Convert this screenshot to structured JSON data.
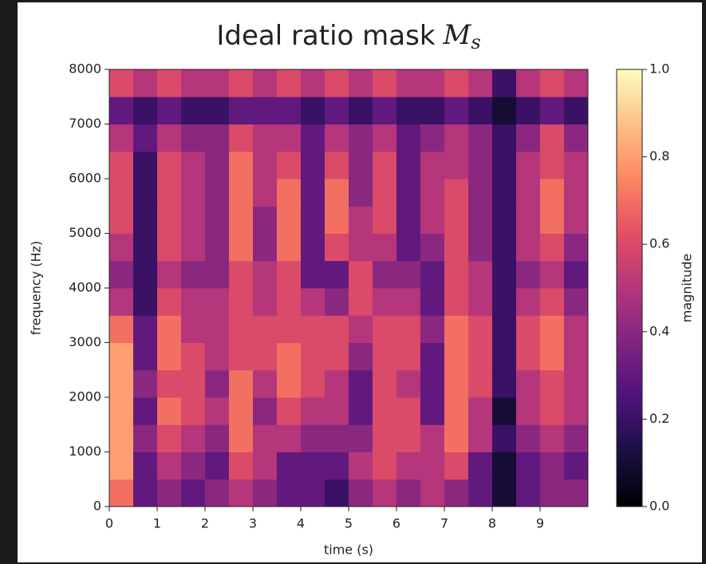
{
  "chart_data": {
    "type": "heatmap",
    "title": "Ideal ratio mask",
    "title_symbol": "M",
    "title_subscript": "s",
    "x_label": "time (s)",
    "y_label": "frequency (Hz)",
    "x_edges": [
      0,
      0.5,
      1,
      1.5,
      2,
      2.5,
      3,
      3.5,
      4,
      4.5,
      5,
      5.5,
      6,
      6.5,
      7,
      7.5,
      8,
      8.5,
      9,
      9.5,
      10
    ],
    "y_edges": [
      0,
      500,
      1000,
      1500,
      2000,
      2500,
      3000,
      3500,
      4000,
      4500,
      5000,
      5500,
      6000,
      6500,
      7000,
      7500,
      8000
    ],
    "z": [
      [
        0.7,
        0.3,
        0.4,
        0.3,
        0.4,
        0.5,
        0.4,
        0.3,
        0.3,
        0.2,
        0.4,
        0.5,
        0.4,
        0.5,
        0.4,
        0.3,
        0.1,
        0.3,
        0.4,
        0.4
      ],
      [
        0.8,
        0.3,
        0.5,
        0.4,
        0.3,
        0.6,
        0.5,
        0.3,
        0.3,
        0.3,
        0.5,
        0.6,
        0.5,
        0.5,
        0.6,
        0.3,
        0.1,
        0.3,
        0.4,
        0.3
      ],
      [
        0.8,
        0.4,
        0.6,
        0.5,
        0.4,
        0.7,
        0.5,
        0.5,
        0.4,
        0.4,
        0.4,
        0.6,
        0.6,
        0.5,
        0.7,
        0.5,
        0.2,
        0.4,
        0.5,
        0.4
      ],
      [
        0.8,
        0.3,
        0.7,
        0.6,
        0.5,
        0.7,
        0.4,
        0.6,
        0.5,
        0.5,
        0.3,
        0.6,
        0.6,
        0.3,
        0.7,
        0.5,
        0.1,
        0.5,
        0.6,
        0.5
      ],
      [
        0.8,
        0.4,
        0.6,
        0.6,
        0.4,
        0.7,
        0.5,
        0.7,
        0.6,
        0.5,
        0.3,
        0.6,
        0.5,
        0.3,
        0.7,
        0.6,
        0.2,
        0.5,
        0.6,
        0.5
      ],
      [
        0.8,
        0.3,
        0.7,
        0.6,
        0.5,
        0.6,
        0.6,
        0.7,
        0.6,
        0.6,
        0.4,
        0.6,
        0.6,
        0.3,
        0.7,
        0.6,
        0.2,
        0.6,
        0.7,
        0.5
      ],
      [
        0.7,
        0.3,
        0.7,
        0.5,
        0.5,
        0.6,
        0.6,
        0.6,
        0.6,
        0.6,
        0.5,
        0.6,
        0.6,
        0.4,
        0.7,
        0.6,
        0.2,
        0.6,
        0.7,
        0.5
      ],
      [
        0.5,
        0.2,
        0.6,
        0.5,
        0.5,
        0.6,
        0.5,
        0.6,
        0.5,
        0.4,
        0.6,
        0.5,
        0.5,
        0.3,
        0.6,
        0.5,
        0.2,
        0.5,
        0.6,
        0.4
      ],
      [
        0.4,
        0.2,
        0.5,
        0.4,
        0.4,
        0.6,
        0.5,
        0.6,
        0.3,
        0.3,
        0.6,
        0.4,
        0.4,
        0.3,
        0.6,
        0.5,
        0.2,
        0.4,
        0.5,
        0.3
      ],
      [
        0.5,
        0.2,
        0.6,
        0.5,
        0.4,
        0.7,
        0.4,
        0.7,
        0.3,
        0.6,
        0.5,
        0.5,
        0.3,
        0.4,
        0.6,
        0.4,
        0.2,
        0.5,
        0.6,
        0.4
      ],
      [
        0.6,
        0.2,
        0.6,
        0.5,
        0.4,
        0.7,
        0.4,
        0.7,
        0.3,
        0.7,
        0.5,
        0.6,
        0.3,
        0.5,
        0.6,
        0.4,
        0.2,
        0.5,
        0.7,
        0.5
      ],
      [
        0.6,
        0.2,
        0.6,
        0.5,
        0.4,
        0.7,
        0.5,
        0.7,
        0.3,
        0.7,
        0.4,
        0.6,
        0.3,
        0.5,
        0.6,
        0.4,
        0.2,
        0.5,
        0.7,
        0.5
      ],
      [
        0.6,
        0.2,
        0.6,
        0.5,
        0.4,
        0.7,
        0.5,
        0.6,
        0.3,
        0.6,
        0.4,
        0.6,
        0.3,
        0.5,
        0.5,
        0.4,
        0.2,
        0.5,
        0.6,
        0.5
      ],
      [
        0.5,
        0.3,
        0.5,
        0.4,
        0.4,
        0.6,
        0.5,
        0.5,
        0.3,
        0.5,
        0.4,
        0.5,
        0.3,
        0.4,
        0.5,
        0.4,
        0.2,
        0.4,
        0.6,
        0.4
      ],
      [
        0.3,
        0.2,
        0.3,
        0.2,
        0.2,
        0.3,
        0.3,
        0.3,
        0.2,
        0.3,
        0.2,
        0.3,
        0.2,
        0.2,
        0.3,
        0.2,
        0.1,
        0.2,
        0.3,
        0.2
      ],
      [
        0.6,
        0.5,
        0.6,
        0.5,
        0.5,
        0.6,
        0.5,
        0.6,
        0.5,
        0.6,
        0.5,
        0.6,
        0.5,
        0.5,
        0.6,
        0.5,
        0.2,
        0.5,
        0.6,
        0.5
      ]
    ],
    "xlim": [
      0,
      10
    ],
    "ylim": [
      0,
      8000
    ],
    "xticks": [
      0,
      1,
      2,
      3,
      4,
      5,
      6,
      7,
      8,
      9
    ],
    "yticks": [
      0,
      1000,
      2000,
      3000,
      4000,
      5000,
      6000,
      7000,
      8000
    ],
    "colormap": "magma",
    "colorbar": {
      "label": "magnitude",
      "lim": [
        0,
        1
      ],
      "ticks": [
        {
          "value": 0,
          "label": "0.0"
        },
        {
          "value": 0.2,
          "label": "0.2"
        },
        {
          "value": 0.4,
          "label": "0.4"
        },
        {
          "value": 0.6,
          "label": "0.6"
        },
        {
          "value": 0.8,
          "label": "0.8"
        },
        {
          "value": 1,
          "label": "1.0"
        }
      ]
    }
  }
}
